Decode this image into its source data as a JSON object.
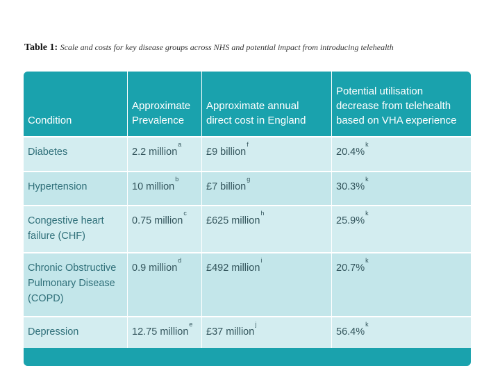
{
  "caption": {
    "lead": "Table 1:",
    "rest": "Scale and costs for key disease groups across NHS and potential impact from introducing telehealth"
  },
  "table": {
    "headers": [
      "Condition",
      "Approximate Prevalence",
      "Approximate annual direct cost in England",
      "Potential utilisation decrease from telehealth based on VHA experience"
    ],
    "rows": [
      {
        "condition": "Diabetes",
        "prevalence": "2.2 million",
        "prevalence_ref": "a",
        "cost": "£9 billion",
        "cost_ref": "f",
        "decrease": "20.4%",
        "decrease_ref": "k"
      },
      {
        "condition": "Hypertension",
        "prevalence": "10 million",
        "prevalence_ref": "b",
        "cost": "£7 billion",
        "cost_ref": "g",
        "decrease": "30.3%",
        "decrease_ref": "k"
      },
      {
        "condition": "Congestive heart failure (CHF)",
        "prevalence": "0.75 million",
        "prevalence_ref": "c",
        "cost": "£625 million",
        "cost_ref": "h",
        "decrease": "25.9%",
        "decrease_ref": "k"
      },
      {
        "condition": "Chronic Obstructive Pulmonary Disease (COPD)",
        "prevalence": "0.9 million",
        "prevalence_ref": "d",
        "cost": "£492 million",
        "cost_ref": "i",
        "decrease": "20.7%",
        "decrease_ref": "k"
      },
      {
        "condition": "Depression",
        "prevalence": "12.75 million",
        "prevalence_ref": "e",
        "cost": "£37 million",
        "cost_ref": "j",
        "decrease": "56.4%",
        "decrease_ref": "k"
      }
    ]
  },
  "colors": {
    "header_bg": "#1aa2ad",
    "row_light": "#d3edf0",
    "row_mid": "#c3e6ea",
    "text": "#33555c"
  }
}
